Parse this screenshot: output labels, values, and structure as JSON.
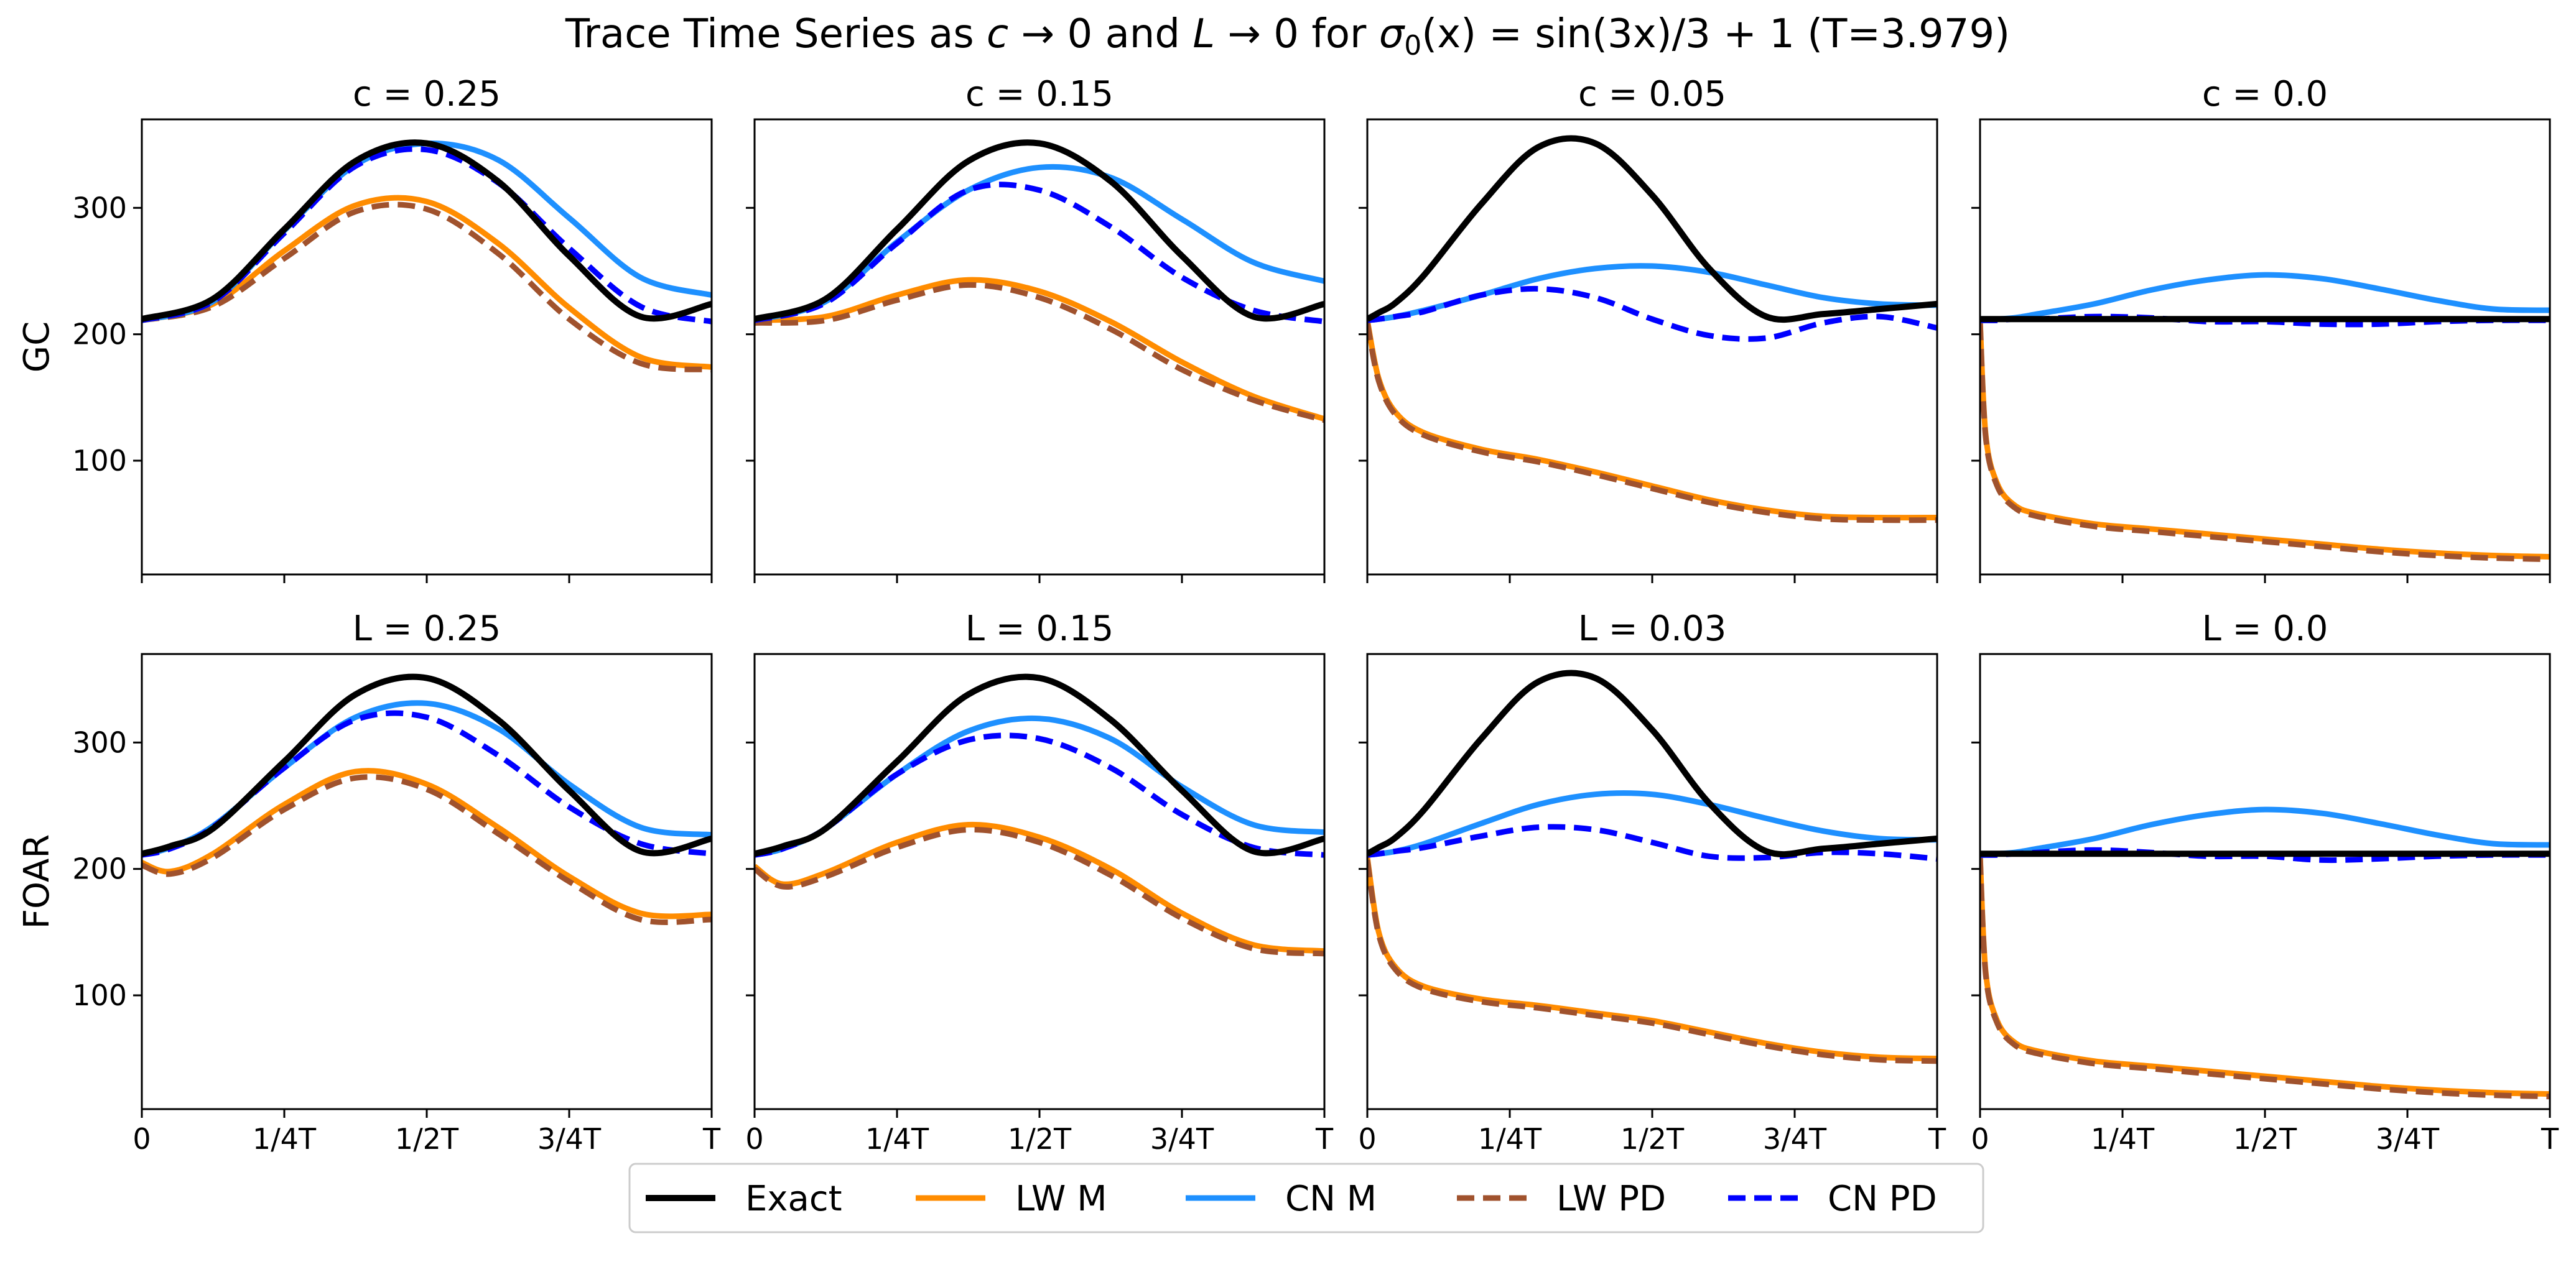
{
  "figure": {
    "title_plain": "Trace Time Series as ",
    "title_c": "c",
    "title_arrow1": " → 0 and ",
    "title_L": "L",
    "title_arrow2": " → 0 for ",
    "title_sigma": "σ",
    "title_sub0": "0",
    "title_fx": "(x) = sin(3x)/3 + 1 (T=3.979)"
  },
  "colors": {
    "Exact": "#000000",
    "LW M": "#ff8c00",
    "CN M": "#1e90ff",
    "LW PD": "#a0522d",
    "CN PD": "#0000ff"
  },
  "chart_data": [
    {
      "type": "line",
      "row_label": "GC",
      "title": "c = 0.25",
      "ylim": [
        10,
        370
      ],
      "yticks": [
        100,
        200,
        300
      ],
      "xticks": [
        "0",
        "1/4T",
        "1/2T",
        "3/4T",
        "T"
      ],
      "xlim": [
        0,
        1
      ],
      "x": [
        0,
        0.125,
        0.25,
        0.375,
        0.5,
        0.625,
        0.75,
        0.875,
        1.0
      ],
      "series": [
        {
          "name": "Exact",
          "style": "solid",
          "values": [
            212,
            228,
            283,
            337,
            351,
            321,
            262,
            214,
            224
          ]
        },
        {
          "name": "LW M",
          "style": "solid",
          "values": [
            211,
            224,
            266,
            302,
            305,
            272,
            221,
            182,
            174
          ]
        },
        {
          "name": "CN M",
          "style": "solid",
          "values": [
            211,
            226,
            282,
            334,
            351,
            338,
            292,
            245,
            231
          ]
        },
        {
          "name": "LW PD",
          "style": "dashed",
          "values": [
            211,
            222,
            260,
            297,
            299,
            264,
            212,
            177,
            172
          ]
        },
        {
          "name": "CN PD",
          "style": "dashed",
          "values": [
            211,
            226,
            280,
            333,
            346,
            320,
            268,
            222,
            210
          ]
        }
      ]
    },
    {
      "type": "line",
      "row_label": "GC",
      "title": "c = 0.15",
      "ylim": [
        10,
        370
      ],
      "yticks": [
        100,
        200,
        300
      ],
      "xticks": [
        "0",
        "1/4T",
        "1/2T",
        "3/4T",
        "T"
      ],
      "xlim": [
        0,
        1
      ],
      "x": [
        0,
        0.125,
        0.25,
        0.375,
        0.5,
        0.625,
        0.75,
        0.875,
        1.0
      ],
      "series": [
        {
          "name": "Exact",
          "style": "solid",
          "values": [
            212,
            228,
            283,
            337,
            351,
            321,
            262,
            214,
            224
          ]
        },
        {
          "name": "LW M",
          "style": "solid",
          "values": [
            211,
            214,
            231,
            243,
            234,
            210,
            178,
            151,
            133
          ]
        },
        {
          "name": "CN M",
          "style": "solid",
          "values": [
            211,
            226,
            273,
            314,
            332,
            324,
            291,
            257,
            242
          ]
        },
        {
          "name": "LW PD",
          "style": "dashed",
          "values": [
            209,
            211,
            227,
            239,
            229,
            204,
            172,
            148,
            132
          ]
        },
        {
          "name": "CN PD",
          "style": "dashed",
          "values": [
            211,
            225,
            272,
            314,
            314,
            285,
            245,
            219,
            210
          ]
        }
      ]
    },
    {
      "type": "line",
      "row_label": "GC",
      "title": "c = 0.05",
      "ylim": [
        10,
        370
      ],
      "yticks": [
        100,
        200,
        300
      ],
      "xticks": [
        "0",
        "1/4T",
        "1/2T",
        "3/4T",
        "T"
      ],
      "xlim": [
        0,
        1
      ],
      "x": [
        0,
        0.02,
        0.05,
        0.1,
        0.2,
        0.3,
        0.4,
        0.5,
        0.6,
        0.7,
        0.8,
        0.9,
        1.0
      ],
      "series": [
        {
          "name": "Exact",
          "style": "solid",
          "values": [
            212,
            217,
            225,
            247,
            303,
            348,
            351,
            310,
            252,
            214,
            216,
            220,
            224
          ]
        },
        {
          "name": "LW M",
          "style": "solid",
          "values": [
            211,
            165,
            138,
            122,
            109,
            101,
            91,
            80,
            69,
            61,
            56,
            55,
            55
          ]
        },
        {
          "name": "CN M",
          "style": "solid",
          "values": [
            211,
            212,
            214,
            219,
            231,
            244,
            252,
            254,
            249,
            239,
            229,
            224,
            223
          ]
        },
        {
          "name": "LW PD",
          "style": "dashed",
          "values": [
            209,
            163,
            136,
            120,
            107,
            99,
            89,
            78,
            67,
            59,
            54,
            53,
            53
          ]
        },
        {
          "name": "CN PD",
          "style": "dashed",
          "values": [
            211,
            212,
            214,
            218,
            231,
            236,
            229,
            212,
            199,
            197,
            209,
            214,
            205
          ]
        }
      ]
    },
    {
      "type": "line",
      "row_label": "GC",
      "title": "c = 0.0",
      "ylim": [
        10,
        370
      ],
      "yticks": [
        100,
        200,
        300
      ],
      "xticks": [
        "0",
        "1/4T",
        "1/2T",
        "3/4T",
        "T"
      ],
      "xlim": [
        0,
        1
      ],
      "x": [
        0,
        0.01,
        0.03,
        0.06,
        0.1,
        0.2,
        0.3,
        0.4,
        0.5,
        0.6,
        0.7,
        0.8,
        0.9,
        1.0
      ],
      "series": [
        {
          "name": "Exact",
          "style": "solid",
          "values": [
            212,
            212,
            212,
            212,
            212,
            212,
            212,
            212,
            212,
            212,
            212,
            212,
            212,
            212
          ]
        },
        {
          "name": "LW M",
          "style": "solid",
          "values": [
            211,
            120,
            82,
            65,
            58,
            50,
            46,
            42,
            38,
            34,
            30,
            27,
            25,
            24
          ]
        },
        {
          "name": "CN M",
          "style": "solid",
          "values": [
            211,
            211,
            212,
            213,
            216,
            224,
            235,
            243,
            247,
            244,
            236,
            227,
            220,
            219
          ]
        },
        {
          "name": "LW PD",
          "style": "dashed",
          "values": [
            209,
            118,
            80,
            63,
            56,
            48,
            44,
            40,
            36,
            32,
            28,
            25,
            23,
            22
          ]
        },
        {
          "name": "CN PD",
          "style": "dashed",
          "values": [
            211,
            211,
            211,
            212,
            212,
            214,
            213,
            210,
            210,
            208,
            208,
            210,
            211,
            211
          ]
        }
      ]
    },
    {
      "type": "line",
      "row_label": "FOAR",
      "title": "L = 0.25",
      "ylim": [
        10,
        370
      ],
      "yticks": [
        100,
        200,
        300
      ],
      "xticks": [
        "0",
        "1/4T",
        "1/2T",
        "3/4T",
        "T"
      ],
      "xlim": [
        0,
        1
      ],
      "x": [
        0,
        0.05,
        0.125,
        0.25,
        0.375,
        0.5,
        0.625,
        0.75,
        0.875,
        1.0
      ],
      "series": [
        {
          "name": "Exact",
          "style": "solid",
          "values": [
            212,
            218,
            232,
            285,
            338,
            351,
            318,
            262,
            214,
            224
          ]
        },
        {
          "name": "LW M",
          "style": "solid",
          "values": [
            205,
            198,
            212,
            251,
            277,
            267,
            233,
            194,
            165,
            164
          ]
        },
        {
          "name": "CN M",
          "style": "solid",
          "values": [
            211,
            217,
            234,
            280,
            320,
            331,
            311,
            267,
            233,
            227
          ]
        },
        {
          "name": "LW PD",
          "style": "dashed",
          "values": [
            203,
            196,
            209,
            247,
            272,
            263,
            228,
            190,
            160,
            160
          ]
        },
        {
          "name": "CN PD",
          "style": "dashed",
          "values": [
            211,
            216,
            233,
            280,
            318,
            320,
            290,
            249,
            220,
            212
          ]
        }
      ]
    },
    {
      "type": "line",
      "row_label": "FOAR",
      "title": "L = 0.15",
      "ylim": [
        10,
        370
      ],
      "yticks": [
        100,
        200,
        300
      ],
      "xticks": [
        "0",
        "1/4T",
        "1/2T",
        "3/4T",
        "T"
      ],
      "xlim": [
        0,
        1
      ],
      "x": [
        0,
        0.05,
        0.125,
        0.25,
        0.375,
        0.5,
        0.625,
        0.75,
        0.875,
        1.0
      ],
      "series": [
        {
          "name": "Exact",
          "style": "solid",
          "values": [
            212,
            218,
            232,
            285,
            338,
            351,
            318,
            262,
            214,
            224
          ]
        },
        {
          "name": "LW M",
          "style": "solid",
          "values": [
            202,
            188,
            197,
            221,
            235,
            225,
            200,
            165,
            140,
            135
          ]
        },
        {
          "name": "CN M",
          "style": "solid",
          "values": [
            211,
            216,
            232,
            275,
            309,
            319,
            303,
            265,
            235,
            229
          ]
        },
        {
          "name": "LW PD",
          "style": "dashed",
          "values": [
            200,
            186,
            194,
            217,
            231,
            221,
            195,
            161,
            137,
            133
          ]
        },
        {
          "name": "CN PD",
          "style": "dashed",
          "values": [
            211,
            216,
            232,
            275,
            302,
            303,
            280,
            243,
            217,
            211
          ]
        }
      ]
    },
    {
      "type": "line",
      "row_label": "FOAR",
      "title": "L = 0.03",
      "ylim": [
        10,
        370
      ],
      "yticks": [
        100,
        200,
        300
      ],
      "xticks": [
        "0",
        "1/4T",
        "1/2T",
        "3/4T",
        "T"
      ],
      "xlim": [
        0,
        1
      ],
      "x": [
        0,
        0.02,
        0.05,
        0.1,
        0.2,
        0.3,
        0.4,
        0.5,
        0.6,
        0.7,
        0.8,
        0.9,
        1.0
      ],
      "series": [
        {
          "name": "Exact",
          "style": "solid",
          "values": [
            212,
            217,
            225,
            247,
            303,
            348,
            351,
            310,
            252,
            214,
            216,
            220,
            224
          ]
        },
        {
          "name": "LW M",
          "style": "solid",
          "values": [
            209,
            150,
            122,
            107,
            97,
            92,
            86,
            80,
            71,
            62,
            55,
            51,
            50
          ]
        },
        {
          "name": "CN M",
          "style": "solid",
          "values": [
            211,
            212,
            214,
            220,
            236,
            251,
            259,
            259,
            251,
            240,
            230,
            224,
            223
          ]
        },
        {
          "name": "LW PD",
          "style": "dashed",
          "values": [
            207,
            148,
            120,
            105,
            95,
            90,
            84,
            78,
            69,
            60,
            53,
            49,
            48
          ]
        },
        {
          "name": "CN PD",
          "style": "dashed",
          "values": [
            211,
            212,
            214,
            217,
            226,
            233,
            231,
            221,
            210,
            209,
            213,
            212,
            208
          ]
        }
      ]
    },
    {
      "type": "line",
      "row_label": "FOAR",
      "title": "L = 0.0",
      "ylim": [
        10,
        370
      ],
      "yticks": [
        100,
        200,
        300
      ],
      "xticks": [
        "0",
        "1/4T",
        "1/2T",
        "3/4T",
        "T"
      ],
      "xlim": [
        0,
        1
      ],
      "x": [
        0,
        0.01,
        0.03,
        0.06,
        0.1,
        0.2,
        0.3,
        0.4,
        0.5,
        0.6,
        0.7,
        0.8,
        0.9,
        1.0
      ],
      "series": [
        {
          "name": "Exact",
          "style": "solid",
          "values": [
            212,
            212,
            212,
            212,
            212,
            212,
            212,
            212,
            212,
            212,
            212,
            212,
            212,
            212
          ]
        },
        {
          "name": "LW M",
          "style": "solid",
          "values": [
            211,
            118,
            80,
            63,
            56,
            48,
            44,
            40,
            36,
            32,
            28,
            25,
            23,
            22
          ]
        },
        {
          "name": "CN M",
          "style": "solid",
          "values": [
            211,
            211,
            212,
            213,
            216,
            224,
            235,
            243,
            247,
            244,
            236,
            227,
            220,
            219
          ]
        },
        {
          "name": "LW PD",
          "style": "dashed",
          "values": [
            209,
            116,
            78,
            61,
            54,
            46,
            42,
            38,
            34,
            30,
            26,
            23,
            21,
            20
          ]
        },
        {
          "name": "CN PD",
          "style": "dashed",
          "values": [
            211,
            211,
            211,
            212,
            213,
            215,
            213,
            210,
            210,
            207,
            208,
            210,
            211,
            211
          ]
        }
      ]
    }
  ],
  "legend": {
    "placement": "bottom-center",
    "entries": [
      {
        "name": "Exact",
        "style": "solid"
      },
      {
        "name": "LW M",
        "style": "solid"
      },
      {
        "name": "CN M",
        "style": "solid"
      },
      {
        "name": "LW PD",
        "style": "dashed"
      },
      {
        "name": "CN PD",
        "style": "dashed"
      }
    ]
  }
}
